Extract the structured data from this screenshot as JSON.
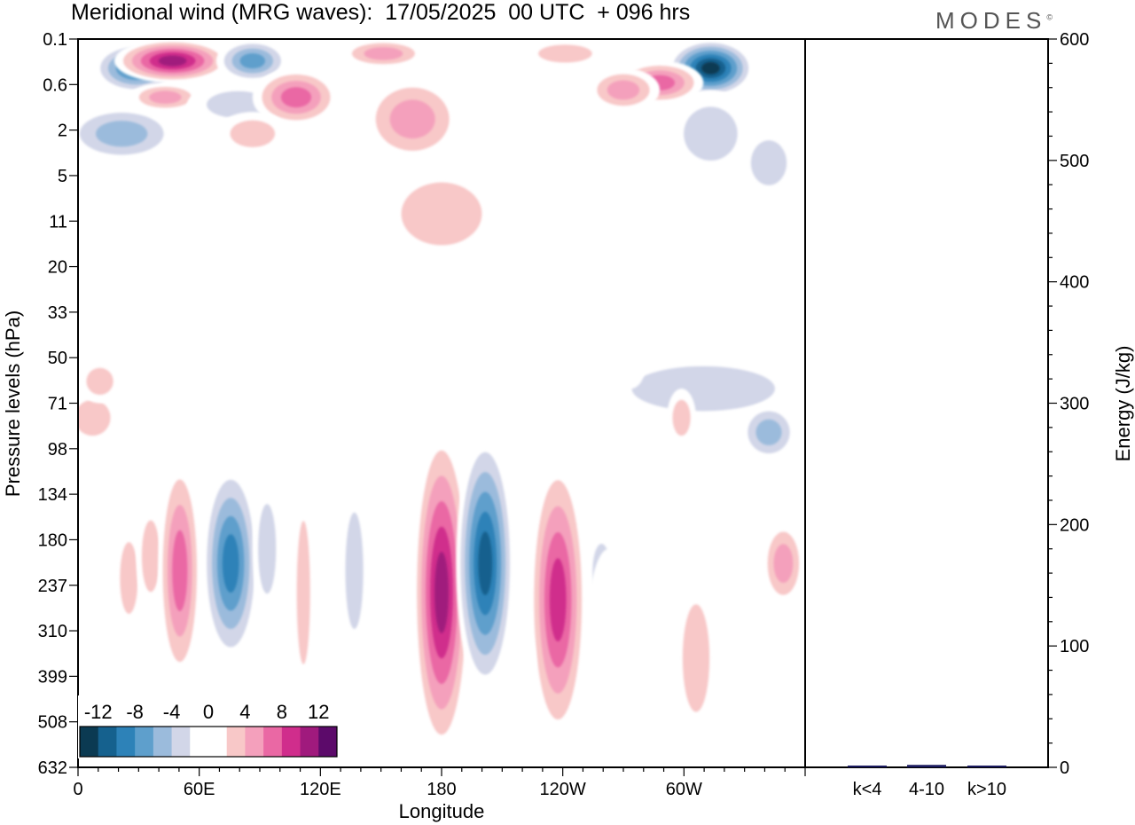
{
  "header": {
    "title": "Meridional wind (MRG waves):  17/05/2025  00 UTC  + 096 hrs",
    "logo_text": "MODES",
    "logo_mark": "©"
  },
  "chart_data": [
    {
      "type": "heatmap",
      "title": "Meridional wind (MRG waves):  17/05/2025  00 UTC  + 096 hrs",
      "xlabel": "Longitude",
      "ylabel": "Pressure levels (hPa)",
      "x_ticks": [
        "0",
        "60E",
        "120E",
        "180",
        "120W",
        "60W"
      ],
      "x_tick_degrees": [
        0,
        60,
        120,
        180,
        240,
        300
      ],
      "x_range_degrees": [
        0,
        360
      ],
      "y_ticks": [
        "0.1",
        "0.6",
        "2",
        "5",
        "11",
        "20",
        "33",
        "50",
        "71",
        "98",
        "134",
        "180",
        "237",
        "310",
        "399",
        "508",
        "632"
      ],
      "y_order": "top-to-bottom",
      "colorbar": {
        "labels": [
          "-12",
          "-8",
          "-4",
          "0",
          "4",
          "8",
          "12"
        ],
        "levels": [
          -14,
          -12,
          -10,
          -8,
          -6,
          -4,
          -2,
          0,
          2,
          4,
          6,
          8,
          10,
          12,
          14
        ],
        "colors": [
          "#0b3a52",
          "#15618e",
          "#2d82b8",
          "#5e9fcc",
          "#9bbbdc",
          "#d2d6e8",
          "#ffffff",
          "#ffffff",
          "#f8c8c8",
          "#f4a0bc",
          "#ea68a4",
          "#d02d8c",
          "#a01a7d",
          "#5c0a6a"
        ],
        "placement": "bottom-left"
      },
      "approx_features": [
        {
          "lon": 20,
          "level": "0.1",
          "value": -12,
          "sign": "negative"
        },
        {
          "lon": 27,
          "level": "0.1",
          "value": 12,
          "sign": "positive"
        },
        {
          "lon": 70,
          "level": "0.1",
          "value": -8,
          "sign": "negative"
        },
        {
          "lon": 320,
          "level": "0.1",
          "value": -14,
          "sign": "negative"
        },
        {
          "lon": 75,
          "level": "180",
          "value": -10,
          "sign": "negative"
        },
        {
          "lon": 43,
          "level": "237",
          "value": 8,
          "sign": "positive"
        },
        {
          "lon": 180,
          "level": "237",
          "value": 12,
          "sign": "positive"
        },
        {
          "lon": 198,
          "level": "180",
          "value": -12,
          "sign": "negative"
        },
        {
          "lon": 232,
          "level": "237",
          "value": 10,
          "sign": "positive"
        },
        {
          "lon": 305,
          "level": "98",
          "value": -6,
          "sign": "negative"
        }
      ]
    },
    {
      "type": "bar",
      "categories": [
        "k<4",
        "4-10",
        "k>10"
      ],
      "values": [
        0.5,
        2,
        0.3
      ],
      "ylabel": "Energy (J/kg)",
      "ylim": [
        0,
        600
      ],
      "y_ticks": [
        "0",
        "100",
        "200",
        "300",
        "400",
        "500",
        "600"
      ],
      "bar_color": "#1a1a5e"
    }
  ]
}
